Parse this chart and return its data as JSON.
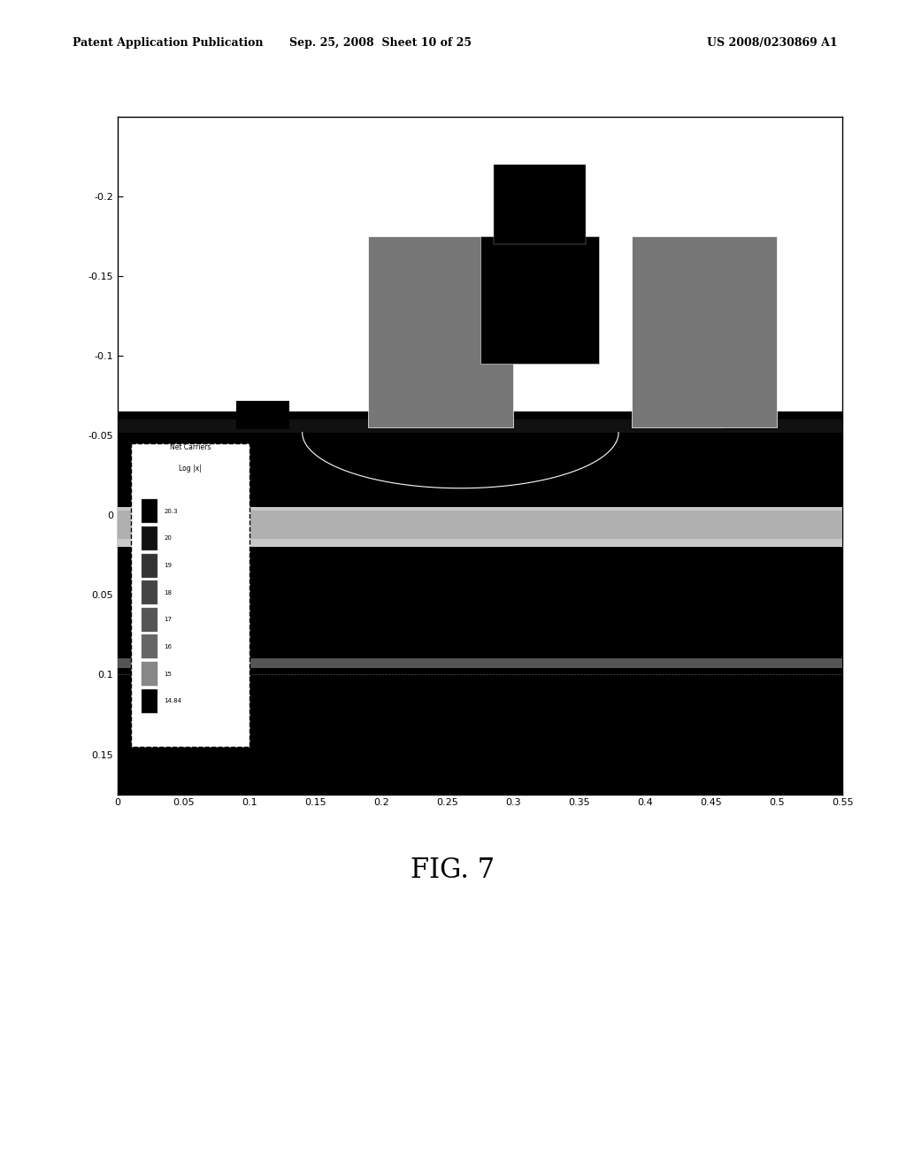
{
  "page_header_left": "Patent Application Publication",
  "page_header_center": "Sep. 25, 2008  Sheet 10 of 25",
  "page_header_right": "US 2008/0230869 A1",
  "figure_label": "FIG. 7",
  "plot_xlim": [
    0,
    0.55
  ],
  "plot_ylim": [
    0.175,
    -0.25
  ],
  "xticks": [
    0,
    0.05,
    0.1,
    0.15,
    0.2,
    0.25,
    0.3,
    0.35,
    0.4,
    0.45,
    0.5,
    0.55
  ],
  "yticks": [
    -0.2,
    -0.15,
    -0.1,
    -0.05,
    0,
    0.05,
    0.1,
    0.15
  ],
  "legend_title1": "Net Carriers",
  "legend_title2": "Log |x|",
  "legend_values": [
    "20.3",
    "20",
    "19",
    "18",
    "17",
    "16",
    "15",
    "14.84"
  ],
  "bg_color": "#ffffff",
  "plot_bg": "#f0f0f0"
}
